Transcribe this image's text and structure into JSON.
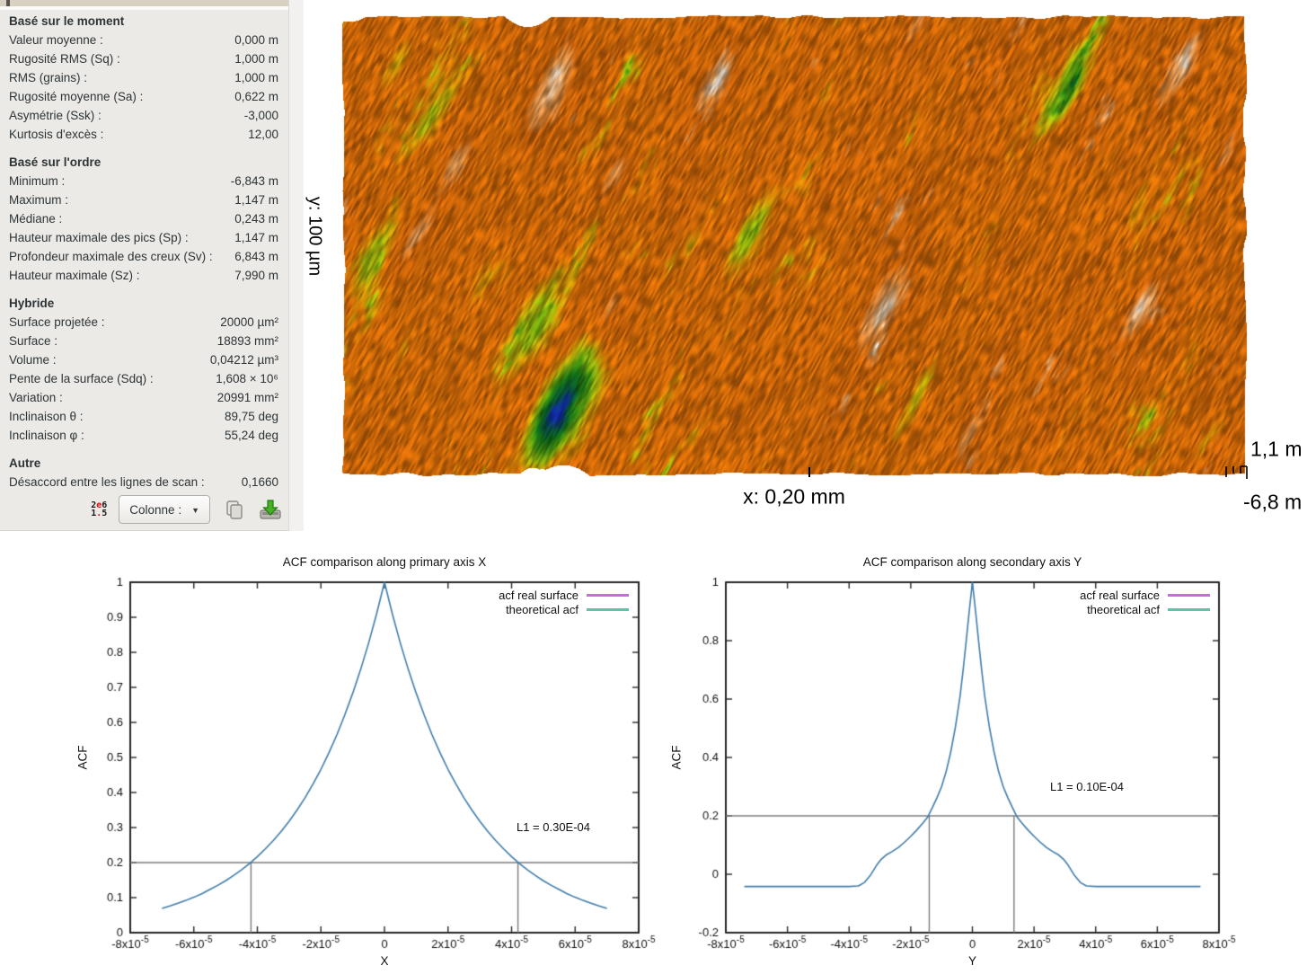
{
  "stats_panel": {
    "sections": [
      {
        "title": "Basé sur le moment",
        "rows": [
          {
            "label": "Valeur moyenne :",
            "value": "0,000 m"
          },
          {
            "label": "Rugosité RMS (Sq) :",
            "value": "1,000 m"
          },
          {
            "label": "RMS (grains) :",
            "value": "1,000 m"
          },
          {
            "label": "Rugosité moyenne (Sa) :",
            "value": "0,622 m"
          },
          {
            "label": "Asymétrie (Ssk) :",
            "value": "-3,000"
          },
          {
            "label": "Kurtosis d'excès :",
            "value": "12,00"
          }
        ]
      },
      {
        "title": "Basé sur l'ordre",
        "rows": [
          {
            "label": "Minimum :",
            "value": "-6,843 m"
          },
          {
            "label": "Maximum :",
            "value": "1,147 m"
          },
          {
            "label": "Médiane :",
            "value": "0,243 m"
          },
          {
            "label": "Hauteur maximale des pics (Sp) :",
            "value": "1,147 m"
          },
          {
            "label": "Profondeur maximale des creux (Sv) :",
            "value": "6,843 m"
          },
          {
            "label": "Hauteur maximale (Sz) :",
            "value": "7,990 m"
          }
        ]
      },
      {
        "title": "Hybride",
        "rows": [
          {
            "label": "Surface projetée :",
            "value": "20000 µm²"
          },
          {
            "label": "Surface :",
            "value": "18893 mm²"
          },
          {
            "label": "Volume :",
            "value": "0,04212 µm³"
          },
          {
            "label": "Pente de la surface (Sdq) :",
            "value": "1,608 × 10⁶"
          },
          {
            "label": "Variation :",
            "value": "20991 mm²"
          },
          {
            "label": "Inclinaison θ :",
            "value": "89,75 deg"
          },
          {
            "label": "Inclinaison φ :",
            "value": "55,24 deg"
          }
        ]
      },
      {
        "title": "Autre",
        "rows": [
          {
            "label": "Désaccord entre les lignes de scan :",
            "value": "0,1660"
          }
        ]
      }
    ],
    "footer": {
      "format_icon": {
        "top": [
          "2",
          "e",
          "6"
        ],
        "bottom": [
          "1",
          ".",
          "5"
        ]
      },
      "column_button_label": "Colonne :",
      "copy_icon": "copy-icon",
      "save_icon": "save-icon"
    }
  },
  "surface_view": {
    "y_axis_label": "y: 100 µm",
    "x_axis_label": "x: 0,20 mm",
    "scale_max_label": "1,1 m",
    "scale_min_label": "-6,8 m",
    "palette": {
      "stops": [
        {
          "h": 0.0,
          "c": "#0b1280"
        },
        {
          "h": 0.1,
          "c": "#1230b0"
        },
        {
          "h": 0.16,
          "c": "#0a5a40"
        },
        {
          "h": 0.24,
          "c": "#147818"
        },
        {
          "h": 0.33,
          "c": "#4f9f12"
        },
        {
          "h": 0.41,
          "c": "#a8c40e"
        },
        {
          "h": 0.49,
          "c": "#dc9c08"
        },
        {
          "h": 0.56,
          "c": "#e27408"
        },
        {
          "h": 0.72,
          "c": "#d96a0a"
        },
        {
          "h": 0.84,
          "c": "#eda45e"
        },
        {
          "h": 0.92,
          "c": "#f7ead8"
        },
        {
          "h": 1.0,
          "c": "#ffffff"
        }
      ]
    }
  },
  "chart_data": [
    {
      "type": "line",
      "title": "ACF comparison along primary axis X",
      "xlabel": "X",
      "ylabel": "ACF",
      "x_unit": 1e-05,
      "xlim": [
        -8,
        8
      ],
      "ylim": [
        0,
        1
      ],
      "grid": false,
      "legend_position": "top-right",
      "x_ticks": [
        {
          "v": -8,
          "label": "-8x10^-5"
        },
        {
          "v": -6,
          "label": "-6x10^-5"
        },
        {
          "v": -4,
          "label": "-4x10^-5"
        },
        {
          "v": -2,
          "label": "-2x10^-5"
        },
        {
          "v": 0,
          "label": "0"
        },
        {
          "v": 2,
          "label": "2x10^-5"
        },
        {
          "v": 4,
          "label": "4x10^-5"
        },
        {
          "v": 6,
          "label": "6x10^-5"
        },
        {
          "v": 8,
          "label": "8x10^-5"
        }
      ],
      "y_ticks": [
        {
          "v": 0,
          "label": "0"
        },
        {
          "v": 0.1,
          "label": "0.1"
        },
        {
          "v": 0.2,
          "label": "0.2"
        },
        {
          "v": 0.3,
          "label": "0.3"
        },
        {
          "v": 0.4,
          "label": "0.4"
        },
        {
          "v": 0.5,
          "label": "0.5"
        },
        {
          "v": 0.6,
          "label": "0.6"
        },
        {
          "v": 0.7,
          "label": "0.7"
        },
        {
          "v": 0.8,
          "label": "0.8"
        },
        {
          "v": 0.9,
          "label": "0.9"
        },
        {
          "v": 1,
          "label": "1"
        }
      ],
      "legend": [
        {
          "label": "acf real surface",
          "color": "#c46fd8"
        },
        {
          "label": "theoretical acf",
          "color": "#63c1a5"
        }
      ],
      "annotation": "L1 = 0.30E-04",
      "threshold_y": 0.2,
      "marker_x": [
        -4.2,
        4.2
      ],
      "curve_color": "#3e7cab",
      "series": {
        "x": [
          -7,
          -6.75,
          -6.5,
          -6.25,
          -6,
          -5.75,
          -5.5,
          -5.25,
          -5,
          -4.75,
          -4.5,
          -4.25,
          -4,
          -3.75,
          -3.5,
          -3.25,
          -3,
          -2.75,
          -2.5,
          -2.25,
          -2,
          -1.75,
          -1.5,
          -1.25,
          -1,
          -0.75,
          -0.5,
          -0.25,
          0,
          0.25,
          0.5,
          0.75,
          1,
          1.25,
          1.5,
          1.75,
          2,
          2.25,
          2.5,
          2.75,
          3,
          3.25,
          3.5,
          3.75,
          4,
          4.25,
          4.5,
          4.75,
          5,
          5.25,
          5.5,
          5.75,
          6,
          6.25,
          6.5,
          6.75,
          7
        ],
        "y": [
          0.069,
          0.076,
          0.084,
          0.092,
          0.101,
          0.111,
          0.123,
          0.135,
          0.148,
          0.163,
          0.179,
          0.197,
          0.217,
          0.239,
          0.263,
          0.289,
          0.318,
          0.35,
          0.385,
          0.424,
          0.466,
          0.513,
          0.564,
          0.621,
          0.683,
          0.751,
          0.826,
          0.909,
          1.0,
          0.909,
          0.826,
          0.751,
          0.683,
          0.621,
          0.564,
          0.513,
          0.466,
          0.424,
          0.385,
          0.35,
          0.318,
          0.289,
          0.263,
          0.239,
          0.217,
          0.197,
          0.179,
          0.163,
          0.148,
          0.135,
          0.123,
          0.111,
          0.101,
          0.092,
          0.084,
          0.076,
          0.069
        ]
      }
    },
    {
      "type": "line",
      "title": "ACF comparison along secondary axis Y",
      "xlabel": "Y",
      "ylabel": "ACF",
      "x_unit": 1e-05,
      "xlim": [
        -8,
        8
      ],
      "ylim": [
        -0.2,
        1
      ],
      "grid": false,
      "legend_position": "top-right",
      "x_ticks": [
        {
          "v": -8,
          "label": "-8x10^-5"
        },
        {
          "v": -6,
          "label": "-6x10^-5"
        },
        {
          "v": -4,
          "label": "-4x10^-5"
        },
        {
          "v": -2,
          "label": "-2x10^-5"
        },
        {
          "v": 0,
          "label": "0"
        },
        {
          "v": 2,
          "label": "2x10^-5"
        },
        {
          "v": 4,
          "label": "4x10^-5"
        },
        {
          "v": 6,
          "label": "6x10^-5"
        },
        {
          "v": 8,
          "label": "8x10^-5"
        }
      ],
      "y_ticks": [
        {
          "v": -0.2,
          "label": "-0.2"
        },
        {
          "v": 0,
          "label": "0"
        },
        {
          "v": 0.2,
          "label": "0.2"
        },
        {
          "v": 0.4,
          "label": "0.4"
        },
        {
          "v": 0.6,
          "label": "0.6"
        },
        {
          "v": 0.8,
          "label": "0.8"
        },
        {
          "v": 1,
          "label": "1"
        }
      ],
      "legend": [
        {
          "label": "acf real surface",
          "color": "#c46fd8"
        },
        {
          "label": "theoretical acf",
          "color": "#63c1a5"
        }
      ],
      "annotation": "L1 = 0.10E-04",
      "threshold_y": 0.2,
      "marker_x": [
        -1.4,
        1.35
      ],
      "curve_color": "#3e7cab",
      "series": {
        "x": [
          -7.4,
          -6.5,
          -5.5,
          -4.5,
          -4.0,
          -3.7,
          -3.5,
          -3.3,
          -3.1,
          -2.95,
          -2.8,
          -2.6,
          -2.4,
          -2.2,
          -2.0,
          -1.8,
          -1.6,
          -1.45,
          -1.3,
          -1.15,
          -1.0,
          -0.85,
          -0.7,
          -0.55,
          -0.4,
          -0.3,
          -0.2,
          -0.1,
          0,
          0.1,
          0.2,
          0.3,
          0.4,
          0.55,
          0.7,
          0.85,
          1.0,
          1.15,
          1.3,
          1.45,
          1.6,
          1.8,
          2.0,
          2.2,
          2.4,
          2.6,
          2.8,
          2.95,
          3.1,
          3.3,
          3.5,
          3.7,
          4.0,
          4.5,
          5.5,
          6.5,
          7.4
        ],
        "y": [
          -0.042,
          -0.042,
          -0.042,
          -0.042,
          -0.042,
          -0.04,
          -0.028,
          -0.002,
          0.032,
          0.052,
          0.066,
          0.078,
          0.092,
          0.11,
          0.13,
          0.152,
          0.176,
          0.196,
          0.228,
          0.262,
          0.3,
          0.352,
          0.42,
          0.505,
          0.61,
          0.7,
          0.8,
          0.903,
          1.0,
          0.903,
          0.8,
          0.7,
          0.61,
          0.505,
          0.42,
          0.352,
          0.3,
          0.262,
          0.228,
          0.196,
          0.176,
          0.152,
          0.13,
          0.11,
          0.092,
          0.078,
          0.066,
          0.052,
          0.032,
          -0.002,
          -0.028,
          -0.04,
          -0.042,
          -0.042,
          -0.042,
          -0.042,
          -0.042
        ]
      }
    }
  ]
}
